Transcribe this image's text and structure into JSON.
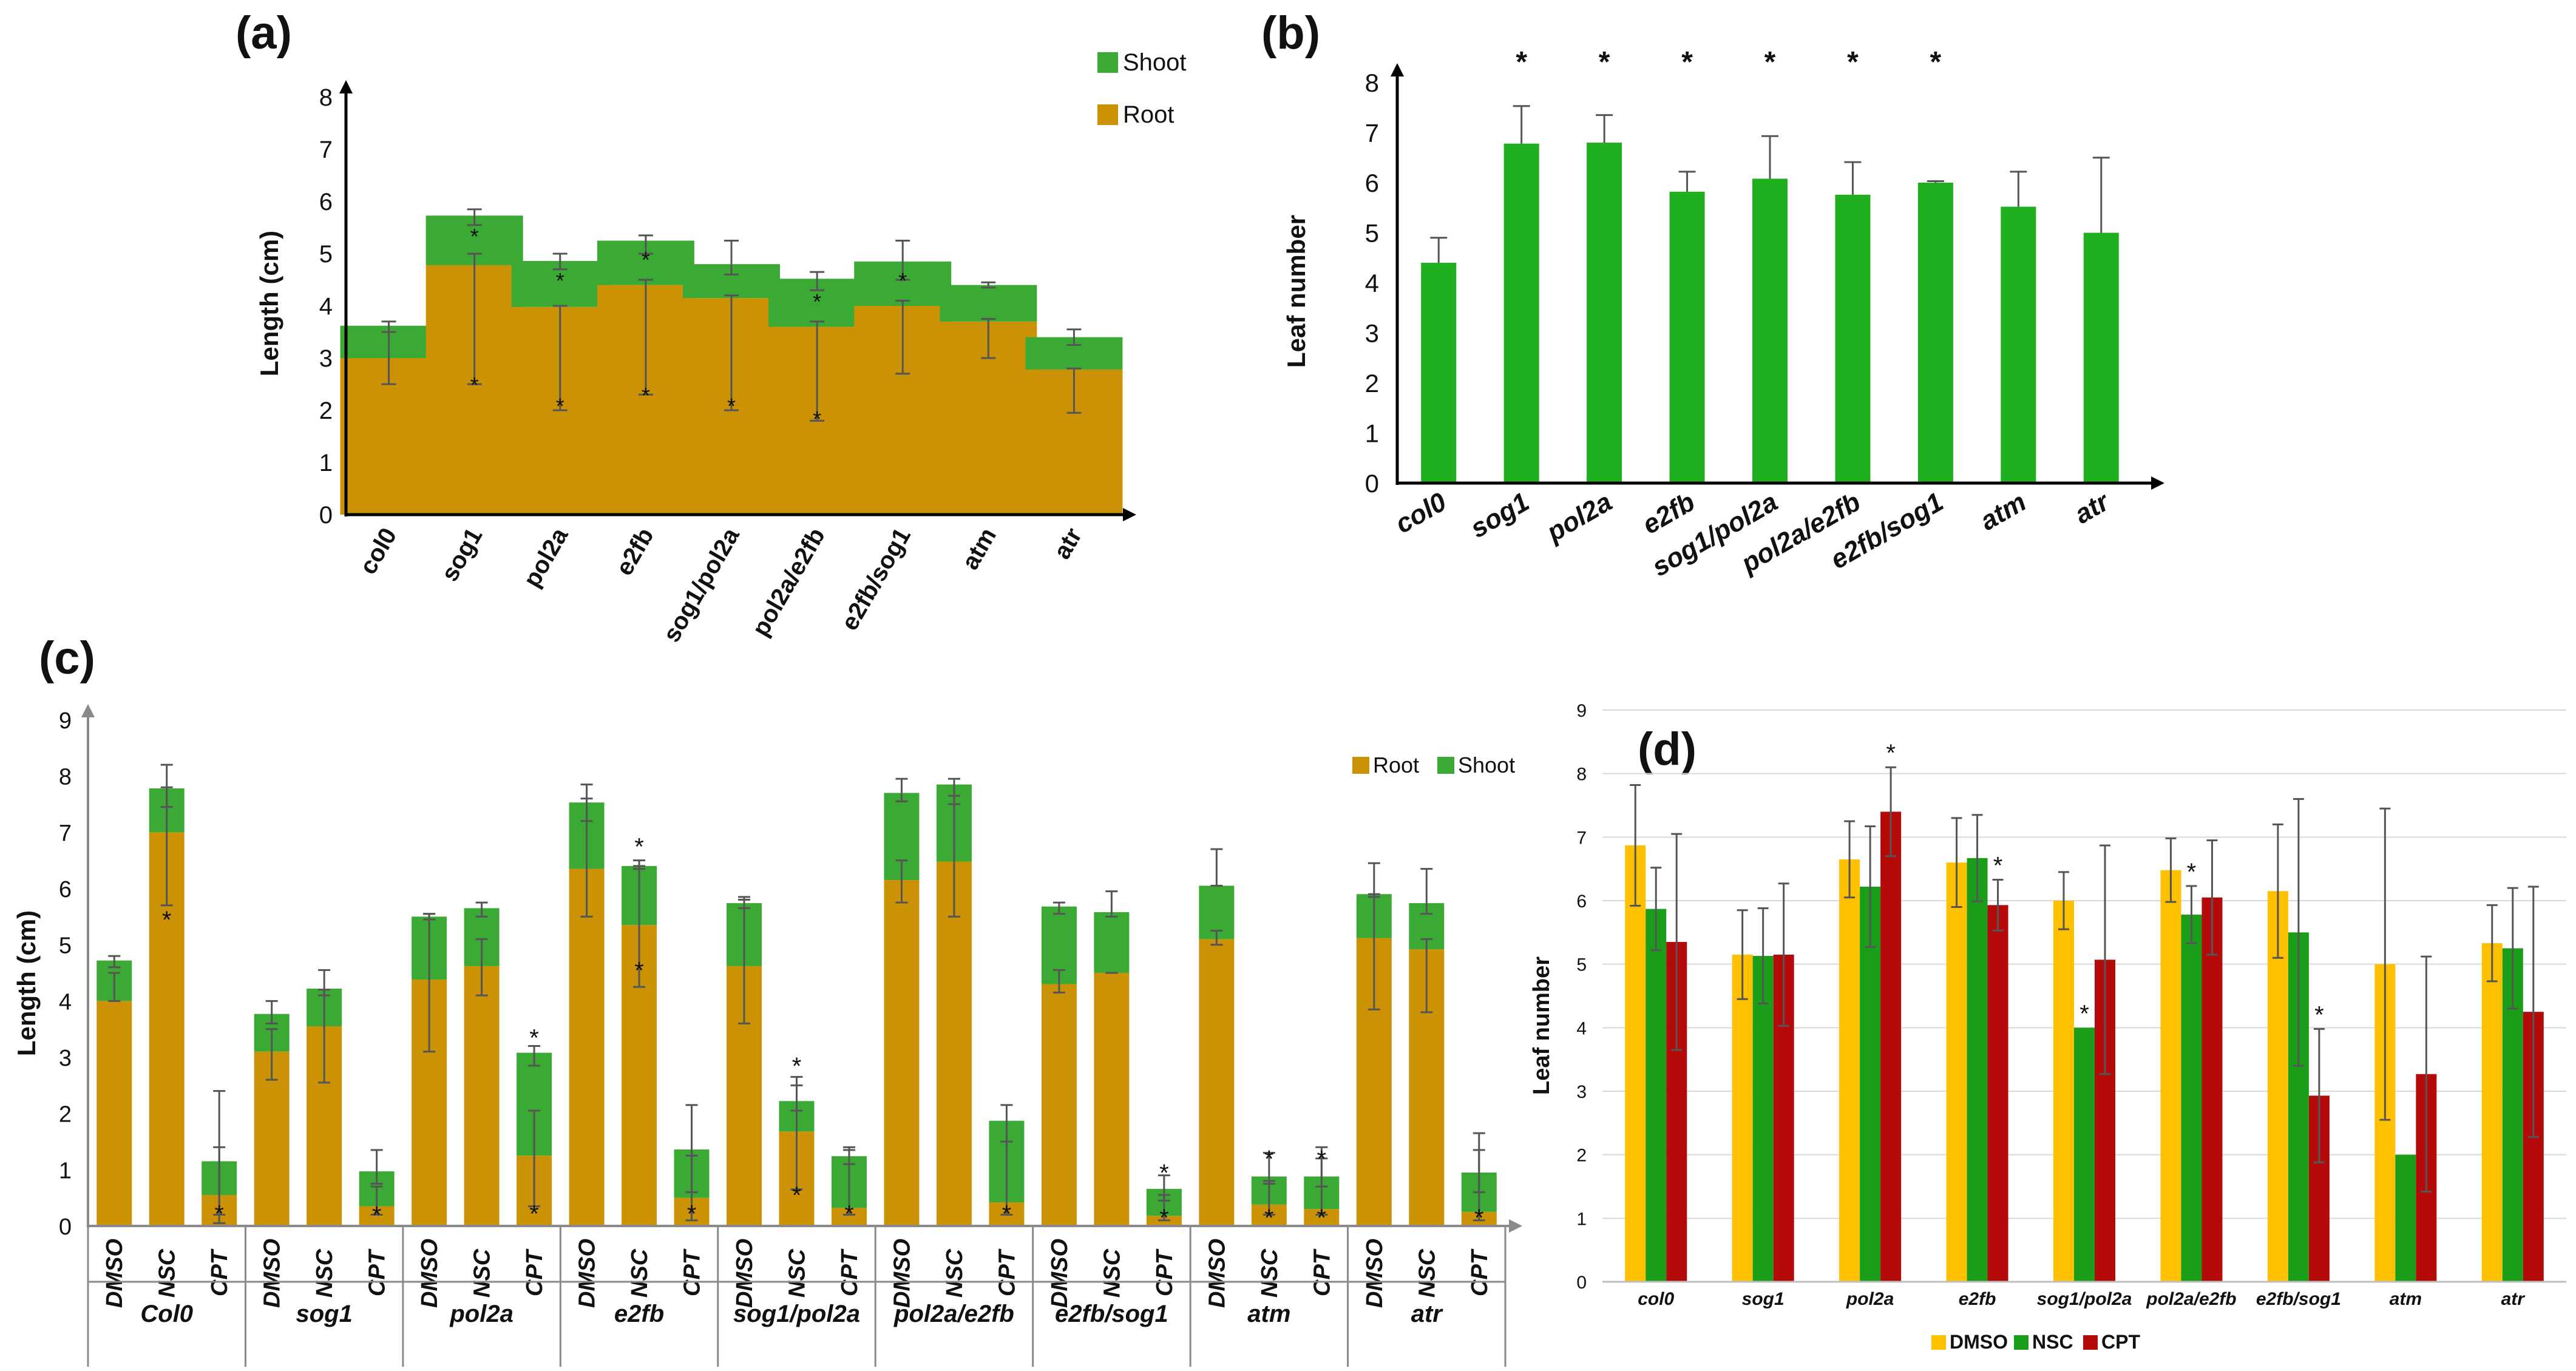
{
  "colors": {
    "root": "#CC9205",
    "shoot": "#3AAA35",
    "leaf": "#1FAF1F",
    "dmso": "#FFC000",
    "nsc": "#1A9E1A",
    "cpt": "#B40A0A",
    "axis": "#000000",
    "axis_c": "#8A8A8A",
    "grid": "#D9D9D9",
    "err": "#555555"
  },
  "chart_data": [
    {
      "id": "a",
      "panel_label": "(a)",
      "type": "bar",
      "stacked": true,
      "categories": [
        "col0",
        "sog1",
        "pol2a",
        "e2fb",
        "sog1/pol2a",
        "pol2a/e2fb",
        "e2fb/sog1",
        "atm",
        "atr"
      ],
      "series": [
        {
          "name": "Root",
          "values": [
            3.0,
            4.78,
            3.98,
            4.4,
            4.15,
            3.6,
            4.0,
            3.7,
            2.78
          ],
          "err_low": [
            2.5,
            2.5,
            2.0,
            2.3,
            2.0,
            1.8,
            2.7,
            3.0,
            1.95
          ],
          "err_high": [
            3.5,
            5.0,
            4.0,
            4.5,
            4.2,
            3.7,
            4.1,
            3.75,
            2.8
          ],
          "marks": [
            null,
            2.5,
            2.1,
            2.3,
            2.1,
            1.85,
            null,
            null,
            null
          ]
        },
        {
          "name": "Shoot",
          "values": [
            0.62,
            0.95,
            0.88,
            0.85,
            0.65,
            0.92,
            0.85,
            0.7,
            0.62
          ],
          "err_low": [
            3.5,
            5.55,
            4.7,
            5.0,
            4.6,
            4.3,
            4.5,
            4.35,
            3.25
          ],
          "err_high": [
            3.7,
            5.85,
            5.0,
            5.35,
            5.25,
            4.65,
            5.25,
            4.45,
            3.55
          ],
          "marks": [
            null,
            5.35,
            4.5,
            4.9,
            null,
            4.1,
            4.5,
            null,
            null
          ]
        }
      ],
      "ylabel": "Length (cm)",
      "ylim": [
        0,
        8
      ],
      "yticks": [
        0,
        1,
        2,
        3,
        4,
        5,
        6,
        7,
        8
      ],
      "legend": [
        "Shoot",
        "Root"
      ],
      "legend_position": "top-right"
    },
    {
      "id": "b",
      "panel_label": "(b)",
      "type": "bar",
      "categories": [
        "col0",
        "sog1",
        "pol2a",
        "e2fb",
        "sog1/pol2a",
        "pol2a/e2fb",
        "e2fb/sog1",
        "atm",
        "atr"
      ],
      "values": [
        4.4,
        6.78,
        6.8,
        5.82,
        6.08,
        5.76,
        6.0,
        5.52,
        5.0
      ],
      "err": [
        0.5,
        0.75,
        0.55,
        0.4,
        0.85,
        0.65,
        0.03,
        0.7,
        1.5
      ],
      "significant": [
        false,
        true,
        true,
        true,
        true,
        true,
        true,
        false,
        false
      ],
      "sig_marker": "*",
      "ylabel": "Leaf number",
      "ylim": [
        0,
        8
      ],
      "yticks": [
        0,
        1,
        2,
        3,
        4,
        5,
        6,
        7,
        8
      ]
    },
    {
      "id": "c",
      "panel_label": "(c)",
      "type": "bar",
      "stacked": true,
      "groups": [
        "Col0",
        "sog1",
        "pol2a",
        "e2fb",
        "sog1/pol2a",
        "pol2a/e2fb",
        "e2fb/sog1",
        "atm",
        "atr"
      ],
      "treatments": [
        "DMSO",
        "NSC",
        "CPT"
      ],
      "series": [
        {
          "name": "Root",
          "values": [
            4.0,
            7.0,
            0.55,
            3.1,
            3.55,
            0.35,
            4.38,
            4.62,
            1.25,
            6.35,
            5.35,
            0.5,
            4.62,
            1.68,
            0.32,
            6.15,
            6.48,
            0.42,
            4.3,
            4.5,
            0.18,
            5.1,
            0.38,
            0.3,
            5.12,
            4.92,
            0.25
          ],
          "err_low": [
            4.0,
            5.7,
            0.05,
            2.6,
            2.55,
            0.2,
            3.1,
            4.1,
            0.35,
            5.5,
            4.25,
            0.1,
            3.6,
            0.65,
            0.2,
            5.75,
            5.5,
            0.2,
            4.15,
            4.5,
            0.1,
            5.0,
            0.2,
            0.2,
            3.85,
            3.8,
            0.1
          ],
          "err_high": [
            4.5,
            7.8,
            1.4,
            3.5,
            4.2,
            0.7,
            5.55,
            5.1,
            2.05,
            7.6,
            6.4,
            1.25,
            5.8,
            2.5,
            1.35,
            6.5,
            7.65,
            1.5,
            4.55,
            4.5,
            0.55,
            5.25,
            0.8,
            1.2,
            5.9,
            5.1,
            1.35
          ],
          "marks": [
            null,
            5.45,
            0.22,
            null,
            null,
            0.2,
            null,
            null,
            0.22,
            null,
            4.55,
            0.22,
            null,
            0.55,
            0.22,
            null,
            null,
            0.22,
            null,
            null,
            0.15,
            null,
            0.15,
            0.15,
            null,
            null,
            0.15
          ]
        },
        {
          "name": "Shoot",
          "values": [
            0.72,
            0.78,
            0.6,
            0.67,
            0.67,
            0.62,
            1.12,
            1.03,
            1.83,
            1.18,
            1.05,
            0.86,
            1.12,
            0.54,
            0.92,
            1.55,
            1.37,
            1.45,
            1.38,
            1.08,
            0.48,
            0.95,
            0.5,
            0.58,
            0.78,
            0.82,
            0.7
          ],
          "err_low": [
            4.6,
            7.45,
            0.2,
            3.6,
            4.1,
            0.75,
            5.45,
            5.5,
            2.85,
            7.2,
            6.35,
            0.6,
            5.65,
            2.05,
            1.1,
            7.55,
            7.5,
            1.5,
            5.55,
            5.5,
            0.45,
            6.05,
            0.75,
            0.7,
            5.85,
            5.55,
            0.6
          ],
          "err_high": [
            4.8,
            8.2,
            2.4,
            4.0,
            4.55,
            1.35,
            5.55,
            5.75,
            3.2,
            7.85,
            6.5,
            2.15,
            5.85,
            2.65,
            1.4,
            7.95,
            7.95,
            2.15,
            5.75,
            5.95,
            0.9,
            6.7,
            1.3,
            1.4,
            6.45,
            6.35,
            1.65
          ],
          "marks": [
            null,
            null,
            null,
            null,
            null,
            null,
            null,
            null,
            3.35,
            null,
            6.75,
            null,
            null,
            2.85,
            null,
            null,
            null,
            null,
            null,
            null,
            0.95,
            null,
            1.2,
            1.2,
            null,
            null,
            null
          ]
        }
      ],
      "ylabel": "Length (cm)",
      "ylim": [
        0,
        9
      ],
      "yticks": [
        0,
        1,
        2,
        3,
        4,
        5,
        6,
        7,
        8,
        9
      ],
      "legend": [
        "Root",
        "Shoot"
      ],
      "legend_position": "top-right"
    },
    {
      "id": "d",
      "panel_label": "(d)",
      "type": "bar",
      "categories": [
        "col0",
        "sog1",
        "pol2a",
        "e2fb",
        "sog1/pol2a",
        "pol2a/e2fb",
        "e2fb/sog1",
        "atm",
        "atr"
      ],
      "series": [
        {
          "name": "DMSO",
          "values": [
            6.87,
            5.15,
            6.65,
            6.6,
            6.0,
            6.48,
            6.15,
            5.0,
            5.33
          ],
          "err": [
            0.95,
            0.7,
            0.6,
            0.7,
            0.45,
            0.5,
            1.05,
            2.45,
            0.6
          ],
          "significant": [
            false,
            false,
            false,
            false,
            false,
            false,
            false,
            false,
            false
          ]
        },
        {
          "name": "NSC",
          "values": [
            5.87,
            5.13,
            6.22,
            6.67,
            4.0,
            5.78,
            5.5,
            2.0,
            5.25
          ],
          "err": [
            0.65,
            0.75,
            0.95,
            0.68,
            0.0,
            0.45,
            2.1,
            0.0,
            0.95
          ],
          "significant": [
            false,
            false,
            false,
            false,
            true,
            true,
            false,
            false,
            false
          ]
        },
        {
          "name": "CPT",
          "values": [
            5.35,
            5.15,
            7.4,
            5.93,
            5.07,
            6.05,
            2.93,
            3.27,
            4.25
          ],
          "err": [
            1.7,
            1.12,
            0.7,
            0.4,
            1.8,
            0.9,
            1.05,
            1.85,
            1.97
          ],
          "significant": [
            false,
            false,
            true,
            true,
            false,
            false,
            true,
            false,
            false
          ]
        }
      ],
      "sig_marker": "*",
      "ylabel": "Leaf number",
      "ylim": [
        0,
        9
      ],
      "yticks": [
        0,
        1,
        2,
        3,
        4,
        5,
        6,
        7,
        8,
        9
      ],
      "grid": true,
      "legend": [
        "DMSO",
        "NSC",
        "CPT"
      ],
      "legend_position": "bottom"
    }
  ]
}
